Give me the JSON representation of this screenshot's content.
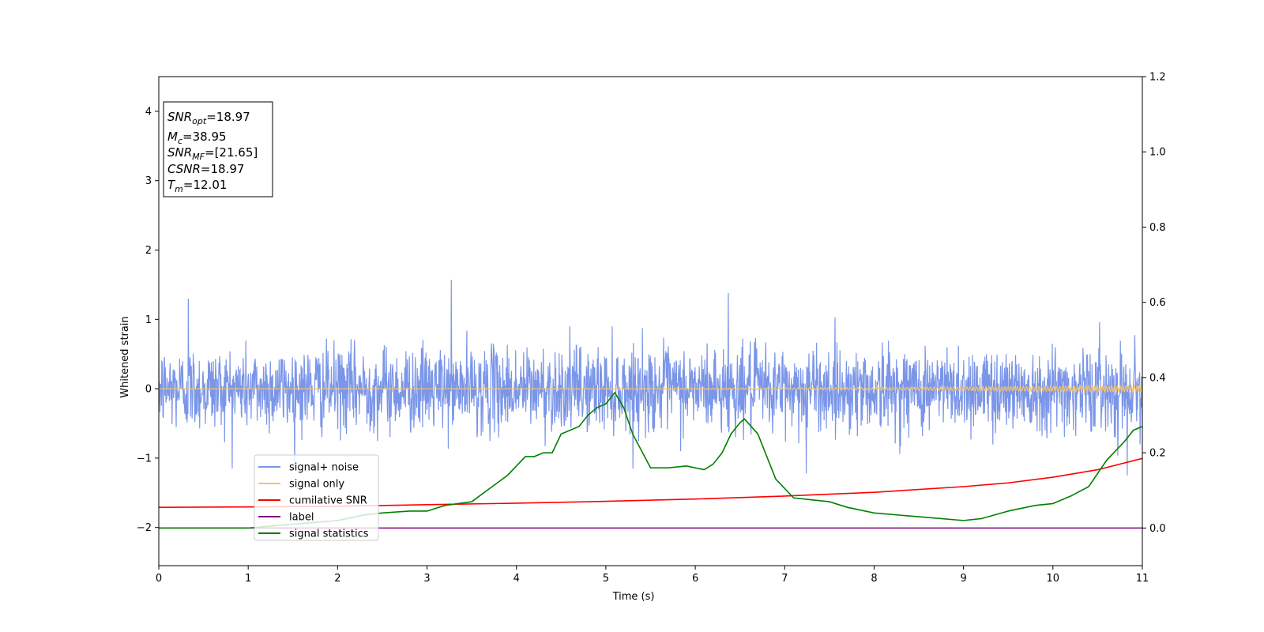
{
  "chart_data": {
    "type": "line",
    "xlabel": "Time (s)",
    "ylabel": "Whitened strain",
    "xlim": [
      0,
      11
    ],
    "ylim_left": [
      -2.55,
      4.5
    ],
    "ylim_right": [
      -0.1,
      1.2
    ],
    "x_ticks": [
      0,
      1,
      2,
      3,
      4,
      5,
      6,
      7,
      8,
      9,
      10,
      11
    ],
    "y_ticks_left": [
      -2,
      -1,
      0,
      1,
      2,
      3,
      4
    ],
    "y_ticks_right": [
      "0.0",
      "0.2",
      "0.4",
      "0.6",
      "0.8",
      "1.0",
      "1.2"
    ],
    "grid": false,
    "legend_position": "lower-left",
    "info_box": {
      "position": "top-left",
      "lines": [
        {
          "base": "SNR",
          "sub": "opt",
          "value": "=18.97"
        },
        {
          "base": "M",
          "sub": "c",
          "value": "=38.95"
        },
        {
          "base": "SNR",
          "sub": "MF",
          "value": "=[21.65]"
        },
        {
          "base": "CSNR",
          "sub": "",
          "value": "=18.97"
        },
        {
          "base": "T",
          "sub": "m",
          "value": "=12.01"
        }
      ]
    },
    "series": [
      {
        "name": "signal+ noise",
        "color": "#7b96e8",
        "axis": "left",
        "kind": "noise",
        "amplitude_typical": 0.6,
        "peaks": [
          {
            "x": 0.33,
            "y": 1.3
          },
          {
            "x": 3.27,
            "y": 1.57
          },
          {
            "x": 6.37,
            "y": 1.38
          },
          {
            "x": 10.83,
            "y": -1.25
          },
          {
            "x": 7.24,
            "y": -1.22
          }
        ]
      },
      {
        "name": "signal only",
        "color": "#f5c26b",
        "axis": "left",
        "kind": "chirp",
        "amplitude_end": 0.05
      },
      {
        "name": "cumilative SNR",
        "color": "#ff0000",
        "axis": "right",
        "x": [
          0,
          1,
          2,
          3,
          4,
          5,
          6,
          7,
          8,
          9,
          9.5,
          10,
          10.5,
          11
        ],
        "y": [
          0.055,
          0.056,
          0.058,
          0.062,
          0.066,
          0.071,
          0.077,
          0.085,
          0.095,
          0.11,
          0.12,
          0.135,
          0.155,
          0.185
        ]
      },
      {
        "name": "label",
        "color": "#800080",
        "axis": "right",
        "x": [
          0,
          11
        ],
        "y": [
          0.0,
          0.0
        ]
      },
      {
        "name": "signal statistics",
        "color": "#008000",
        "axis": "right",
        "x": [
          0,
          1.0,
          1.5,
          2.0,
          2.3,
          2.5,
          2.8,
          3.0,
          3.2,
          3.5,
          3.7,
          3.9,
          4.0,
          4.1,
          4.2,
          4.3,
          4.4,
          4.5,
          4.6,
          4.7,
          4.8,
          4.9,
          5.0,
          5.1,
          5.2,
          5.3,
          5.5,
          5.7,
          5.9,
          6.1,
          6.2,
          6.3,
          6.4,
          6.5,
          6.55,
          6.7,
          6.9,
          7.1,
          7.3,
          7.5,
          7.7,
          8.0,
          8.5,
          9.0,
          9.2,
          9.5,
          9.8,
          10.0,
          10.2,
          10.4,
          10.6,
          10.8,
          10.9,
          11.0
        ],
        "y": [
          0.0,
          0.0,
          0.01,
          0.02,
          0.035,
          0.04,
          0.045,
          0.045,
          0.06,
          0.07,
          0.105,
          0.14,
          0.165,
          0.19,
          0.19,
          0.2,
          0.2,
          0.25,
          0.26,
          0.27,
          0.3,
          0.32,
          0.33,
          0.36,
          0.32,
          0.25,
          0.16,
          0.16,
          0.165,
          0.155,
          0.17,
          0.2,
          0.25,
          0.28,
          0.29,
          0.25,
          0.13,
          0.08,
          0.075,
          0.07,
          0.055,
          0.04,
          0.03,
          0.02,
          0.025,
          0.045,
          0.06,
          0.065,
          0.085,
          0.11,
          0.18,
          0.23,
          0.26,
          0.27
        ]
      }
    ]
  }
}
